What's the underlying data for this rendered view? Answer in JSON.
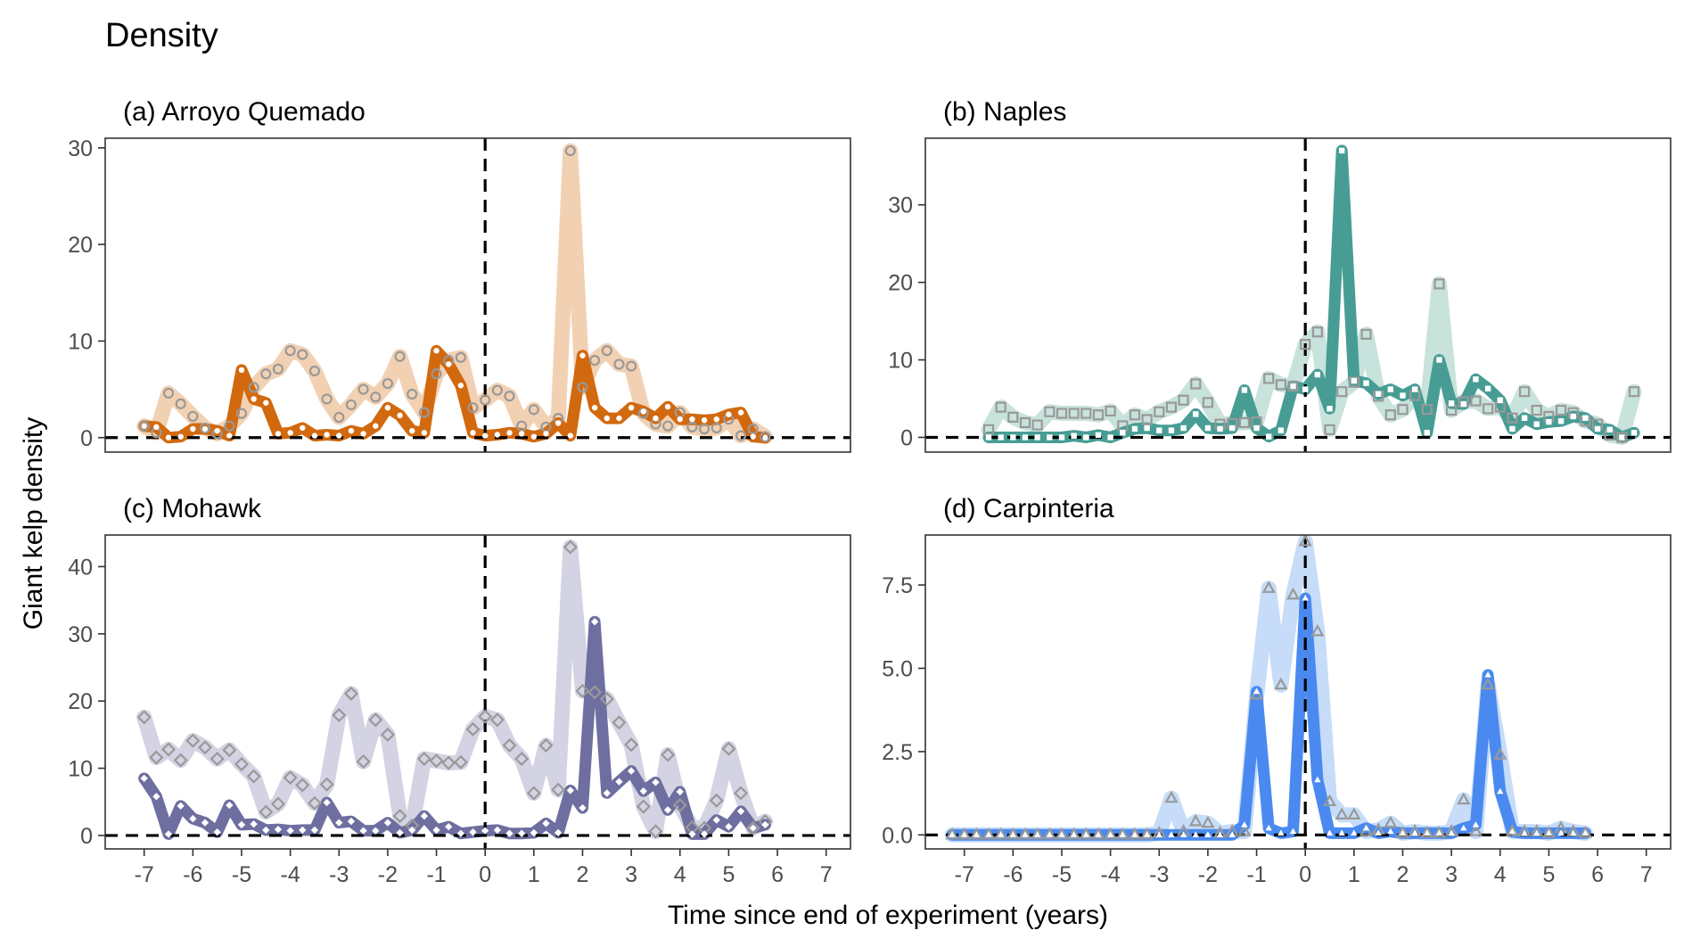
{
  "figure": {
    "title": "Density",
    "xlabel": "Time since end of experiment (years)",
    "ylabel": "Giant kelp density"
  },
  "chart_data": [
    {
      "type": "line",
      "panel": "a",
      "title": "(a) Arroyo Quemado",
      "xlim": [
        -7.8,
        7.5
      ],
      "ylim": [
        -1.5,
        31
      ],
      "xticks": [
        -7,
        -6,
        -5,
        -4,
        -3,
        -2,
        -1,
        0,
        1,
        2,
        3,
        4,
        5,
        6,
        7
      ],
      "yticks": [
        0,
        10,
        20,
        30
      ],
      "ytick_labels": [
        "0",
        "10",
        "20",
        "30"
      ],
      "hlines": [
        0
      ],
      "vlines": [
        0
      ],
      "color_control": "#f2d1b3",
      "color_removal": "#d2690f",
      "marker": "circle",
      "series": [
        {
          "role": "control",
          "x": [
            -7,
            -6.75,
            -6.5,
            -6.25,
            -6,
            -5.75,
            -5.5,
            -5.25,
            -5,
            -4.75,
            -4.5,
            -4.25,
            -4,
            -3.75,
            -3.5,
            -3.25,
            -3,
            -2.75,
            -2.5,
            -2.25,
            -2,
            -1.75,
            -1.5,
            -1.25,
            -1,
            -0.75,
            -0.5,
            -0.25,
            0,
            0.25,
            0.5,
            0.75,
            1,
            1.25,
            1.5,
            1.75,
            2,
            2.25,
            2.5,
            2.75,
            3,
            3.25,
            3.5,
            3.75,
            4,
            4.25,
            4.5,
            4.75,
            5,
            5.25,
            5.5,
            5.75
          ],
          "y": [
            1.2,
            0.5,
            4.6,
            3.5,
            2.2,
            1.0,
            0.4,
            1.2,
            2.5,
            5.2,
            6.6,
            7.1,
            9.0,
            8.6,
            6.9,
            4.0,
            2.1,
            3.4,
            5.0,
            4.2,
            5.6,
            8.4,
            4.5,
            2.6,
            6.6,
            8.0,
            8.3,
            3.1,
            3.9,
            4.9,
            4.3,
            1.2,
            2.9,
            1.1,
            2.0,
            29.7,
            5.2,
            8.0,
            9.0,
            7.6,
            7.4,
            2.5,
            1.4,
            1.2,
            2.6,
            1.1,
            0.9,
            1.0,
            1.9,
            0.2,
            0.9,
            0.1
          ]
        },
        {
          "role": "removal",
          "x": [
            -7,
            -6.75,
            -6.5,
            -6.25,
            -6,
            -5.75,
            -5.5,
            -5.25,
            -5,
            -4.75,
            -4.5,
            -4.25,
            -4,
            -3.75,
            -3.5,
            -3.25,
            -3,
            -2.75,
            -2.5,
            -2.25,
            -2,
            -1.75,
            -1.5,
            -1.25,
            -1,
            -0.75,
            -0.5,
            -0.25,
            0,
            0.25,
            0.5,
            0.75,
            1,
            1.25,
            1.5,
            1.75,
            2,
            2.25,
            2.5,
            2.75,
            3,
            3.25,
            3.5,
            3.75,
            4,
            4.25,
            4.5,
            4.75,
            5,
            5.25,
            5.5,
            5.75
          ],
          "y": [
            1.2,
            1.1,
            0.0,
            0.1,
            0.9,
            0.9,
            0.7,
            0.2,
            7.0,
            4.0,
            3.6,
            0.4,
            0.5,
            1.0,
            0.2,
            0.3,
            0.2,
            0.7,
            0.4,
            1.2,
            3.1,
            2.3,
            0.7,
            0.5,
            9.0,
            7.6,
            5.4,
            0.5,
            0.2,
            0.3,
            0.5,
            0.4,
            0.1,
            0.4,
            1.5,
            0.2,
            8.5,
            3.1,
            2.0,
            2.0,
            3.1,
            2.7,
            2.0,
            3.2,
            1.9,
            1.9,
            1.8,
            1.9,
            2.4,
            2.6,
            0.1,
            0.0
          ]
        }
      ]
    },
    {
      "type": "line",
      "panel": "b",
      "title": "(b) Naples",
      "xlim": [
        -7.8,
        7.5
      ],
      "ylim": [
        -1.9,
        38.6
      ],
      "xticks": [
        -7,
        -6,
        -5,
        -4,
        -3,
        -2,
        -1,
        0,
        1,
        2,
        3,
        4,
        5,
        6,
        7
      ],
      "yticks": [
        0,
        10,
        20,
        30
      ],
      "ytick_labels": [
        "0",
        "10",
        "20",
        "30"
      ],
      "hlines": [
        0
      ],
      "vlines": [
        0
      ],
      "color_control": "#c8e2dc",
      "color_removal": "#479d94",
      "marker": "square",
      "series": [
        {
          "role": "control",
          "x": [
            -6.5,
            -6.25,
            -6,
            -5.75,
            -5.5,
            -5.25,
            -5,
            -4.75,
            -4.5,
            -4.25,
            -4,
            -3.75,
            -3.5,
            -3.25,
            -3,
            -2.75,
            -2.5,
            -2.25,
            -2,
            -1.75,
            -1.5,
            -1.25,
            -1,
            -0.75,
            -0.5,
            -0.25,
            0,
            0.25,
            0.5,
            0.75,
            1,
            1.25,
            1.5,
            1.75,
            2,
            2.25,
            2.5,
            2.75,
            3,
            3.25,
            3.5,
            3.75,
            4,
            4.25,
            4.5,
            4.75,
            5,
            5.25,
            5.5,
            5.75,
            6,
            6.25,
            6.5,
            6.75
          ],
          "y": [
            1.0,
            3.9,
            2.6,
            1.9,
            1.6,
            3.3,
            3.1,
            3.1,
            3.1,
            2.9,
            3.4,
            1.5,
            2.9,
            2.3,
            3.3,
            3.9,
            4.8,
            6.9,
            4.5,
            1.7,
            1.8,
            1.9,
            2.0,
            7.6,
            6.8,
            6.6,
            12.0,
            13.6,
            1.0,
            5.9,
            7.1,
            13.3,
            5.3,
            2.9,
            3.6,
            5.4,
            3.6,
            19.8,
            3.5,
            4.6,
            4.7,
            3.7,
            3.9,
            2.5,
            5.9,
            3.5,
            2.7,
            3.5,
            3.2,
            2.1,
            1.7,
            0.3,
            0.0,
            5.9
          ]
        },
        {
          "role": "removal",
          "x": [
            -6.5,
            -6.25,
            -6,
            -5.75,
            -5.5,
            -5.25,
            -5,
            -4.75,
            -4.5,
            -4.25,
            -4,
            -3.75,
            -3.5,
            -3.25,
            -3,
            -2.75,
            -2.5,
            -2.25,
            -2,
            -1.75,
            -1.5,
            -1.25,
            -1,
            -0.75,
            -0.5,
            -0.25,
            0,
            0.25,
            0.5,
            0.75,
            1,
            1.25,
            1.5,
            1.75,
            2,
            2.25,
            2.5,
            2.75,
            3,
            3.25,
            3.5,
            3.75,
            4,
            4.25,
            4.5,
            4.75,
            5,
            5.25,
            5.5,
            5.75,
            6,
            6.25,
            6.5,
            6.75
          ],
          "y": [
            0.0,
            0.0,
            0.0,
            0.0,
            0.0,
            0.0,
            0.0,
            0.2,
            0.0,
            0.3,
            0.0,
            0.6,
            1.1,
            1.2,
            0.9,
            0.9,
            1.2,
            3.0,
            1.2,
            1.1,
            1.2,
            6.1,
            1.2,
            0.1,
            0.9,
            6.6,
            6.2,
            8.1,
            3.7,
            37.0,
            7.3,
            7.0,
            5.6,
            6.2,
            5.4,
            6.2,
            0.6,
            10.0,
            4.4,
            4.3,
            7.5,
            6.3,
            4.8,
            1.1,
            2.5,
            1.7,
            2.0,
            2.1,
            2.7,
            2.5,
            1.1,
            1.0,
            0.0,
            0.6
          ]
        }
      ]
    },
    {
      "type": "line",
      "panel": "c",
      "title": "(c) Mohawk",
      "xlim": [
        -7.8,
        7.5
      ],
      "ylim": [
        -2.0,
        44.7
      ],
      "xticks": [
        -7,
        -6,
        -5,
        -4,
        -3,
        -2,
        -1,
        0,
        1,
        2,
        3,
        4,
        5,
        6,
        7
      ],
      "yticks": [
        0,
        10,
        20,
        30,
        40
      ],
      "ytick_labels": [
        "0",
        "10",
        "20",
        "30",
        "40"
      ],
      "hlines": [
        0
      ],
      "vlines": [
        0
      ],
      "color_control": "#d3d3e3",
      "color_removal": "#6e6ea0",
      "marker": "diamond",
      "series": [
        {
          "role": "control",
          "x": [
            -7,
            -6.75,
            -6.5,
            -6.25,
            -6,
            -5.75,
            -5.5,
            -5.25,
            -5,
            -4.75,
            -4.5,
            -4.25,
            -4,
            -3.75,
            -3.5,
            -3.25,
            -3,
            -2.75,
            -2.5,
            -2.25,
            -2,
            -1.75,
            -1.5,
            -1.25,
            -1,
            -0.75,
            -0.5,
            -0.25,
            0,
            0.25,
            0.5,
            0.75,
            1,
            1.25,
            1.5,
            1.75,
            2,
            2.25,
            2.5,
            2.75,
            3,
            3.25,
            3.5,
            3.75,
            4,
            4.25,
            4.5,
            4.75,
            5,
            5.25,
            5.5,
            5.75
          ],
          "y": [
            17.6,
            11.6,
            12.8,
            11.2,
            14.1,
            13.1,
            11.4,
            12.7,
            10.6,
            8.8,
            3.5,
            4.7,
            8.6,
            7.5,
            4.8,
            7.6,
            17.9,
            21.1,
            11.0,
            17.2,
            15.0,
            2.9,
            1.5,
            11.4,
            11.1,
            10.8,
            10.9,
            15.8,
            17.7,
            17.2,
            13.4,
            11.4,
            6.3,
            13.4,
            6.8,
            42.9,
            21.5,
            21.3,
            20.3,
            16.8,
            13.5,
            4.3,
            0.6,
            12.0,
            4.5,
            1.2,
            1.1,
            5.2,
            12.9,
            6.3,
            1.1,
            2.1
          ]
        },
        {
          "role": "removal",
          "x": [
            -7,
            -6.75,
            -6.5,
            -6.25,
            -6,
            -5.75,
            -5.5,
            -5.25,
            -5,
            -4.75,
            -4.5,
            -4.25,
            -4,
            -3.75,
            -3.5,
            -3.25,
            -3,
            -2.75,
            -2.5,
            -2.25,
            -2,
            -1.75,
            -1.5,
            -1.25,
            -1,
            -0.75,
            -0.5,
            -0.25,
            0,
            0.25,
            0.5,
            0.75,
            1,
            1.25,
            1.5,
            1.75,
            2,
            2.25,
            2.5,
            2.75,
            3,
            3.25,
            3.5,
            3.75,
            4,
            4.25,
            4.5,
            4.75,
            5,
            5.25,
            5.5,
            5.75
          ],
          "y": [
            8.5,
            5.8,
            0.2,
            4.4,
            2.5,
            1.9,
            0.5,
            4.5,
            1.6,
            1.7,
            0.8,
            0.9,
            0.7,
            0.8,
            0.8,
            4.9,
            1.9,
            2.1,
            0.7,
            0.7,
            1.9,
            0.4,
            0.8,
            2.9,
            0.8,
            1.3,
            0.3,
            0.5,
            0.7,
            0.8,
            0.3,
            0.3,
            0.4,
            1.8,
            0.4,
            6.7,
            4.1,
            31.8,
            6.3,
            8.0,
            9.6,
            6.6,
            7.9,
            3.8,
            6.5,
            0.2,
            0.2,
            2.3,
            1.3,
            3.6,
            1.1,
            1.6
          ]
        }
      ]
    },
    {
      "type": "line",
      "panel": "d",
      "title": "(d) Carpinteria",
      "xlim": [
        -7.8,
        7.5
      ],
      "ylim": [
        -0.42,
        9.0
      ],
      "xticks": [
        -7,
        -6,
        -5,
        -4,
        -3,
        -2,
        -1,
        0,
        1,
        2,
        3,
        4,
        5,
        6,
        7
      ],
      "yticks": [
        0,
        2.5,
        5,
        7.5
      ],
      "ytick_labels": [
        "0.0",
        "2.5",
        "5.0",
        "7.5"
      ],
      "hlines": [
        0
      ],
      "vlines": [
        0
      ],
      "color_control": "#c6dcf8",
      "color_removal": "#4a8af0",
      "marker": "triangle",
      "series": [
        {
          "role": "control",
          "x": [
            -7.25,
            -7,
            -6.75,
            -6.5,
            -6.25,
            -6,
            -5.75,
            -5.5,
            -5.25,
            -5,
            -4.75,
            -4.5,
            -4.25,
            -4,
            -3.75,
            -3.5,
            -3.25,
            -3,
            -2.75,
            -2.5,
            -2.25,
            -2,
            -1.75,
            -1.5,
            -1.25,
            -1,
            -0.75,
            -0.5,
            -0.25,
            0,
            0.25,
            0.5,
            0.75,
            1,
            1.25,
            1.5,
            1.75,
            2,
            2.25,
            2.5,
            2.75,
            3,
            3.25,
            3.5,
            3.75,
            4,
            4.25,
            4.5,
            4.75,
            5,
            5.25,
            5.5,
            5.75
          ],
          "y": [
            0,
            0,
            0,
            0,
            0,
            0,
            0,
            0,
            0,
            0,
            0,
            0,
            0,
            0,
            0,
            0,
            0,
            0.05,
            1.1,
            0.1,
            0.4,
            0.35,
            0.05,
            0.1,
            0.1,
            4.2,
            7.4,
            4.5,
            7.2,
            8.8,
            6.1,
            1.0,
            0.6,
            0.6,
            0.1,
            0.15,
            0.35,
            0.05,
            0.1,
            0.05,
            0.05,
            0.1,
            1.05,
            0.1,
            4.5,
            2.4,
            0.1,
            0.1,
            0.1,
            0.05,
            0.2,
            0.1,
            0.05
          ]
        },
        {
          "role": "removal",
          "x": [
            -7.25,
            -7,
            -6.75,
            -6.5,
            -6.25,
            -6,
            -5.75,
            -5.5,
            -5.25,
            -5,
            -4.75,
            -4.5,
            -4.25,
            -4,
            -3.75,
            -3.5,
            -3.25,
            -3,
            -2.75,
            -2.5,
            -2.25,
            -2,
            -1.75,
            -1.5,
            -1.25,
            -1,
            -0.75,
            -0.5,
            -0.25,
            0,
            0.25,
            0.5,
            0.75,
            1,
            1.25,
            1.5,
            1.75,
            2,
            2.25,
            2.5,
            2.75,
            3,
            3.25,
            3.5,
            3.75,
            4,
            4.25,
            4.5,
            4.75,
            5,
            5.25,
            5.5,
            5.75
          ],
          "y": [
            0,
            0,
            0,
            0,
            0,
            0,
            0,
            0,
            0,
            0,
            0,
            0,
            0,
            0,
            0,
            0,
            0,
            0,
            0,
            0,
            0,
            0,
            0,
            0,
            0.3,
            4.3,
            0.2,
            0.05,
            0.1,
            7.1,
            1.65,
            0.05,
            0.05,
            0.05,
            0.2,
            0.05,
            0.1,
            0.05,
            0.05,
            0.05,
            0.05,
            0.05,
            0.2,
            0.3,
            4.8,
            1.3,
            0.1,
            0.05,
            0.05,
            0.05,
            0.05,
            0.05,
            0.05
          ]
        }
      ]
    }
  ]
}
